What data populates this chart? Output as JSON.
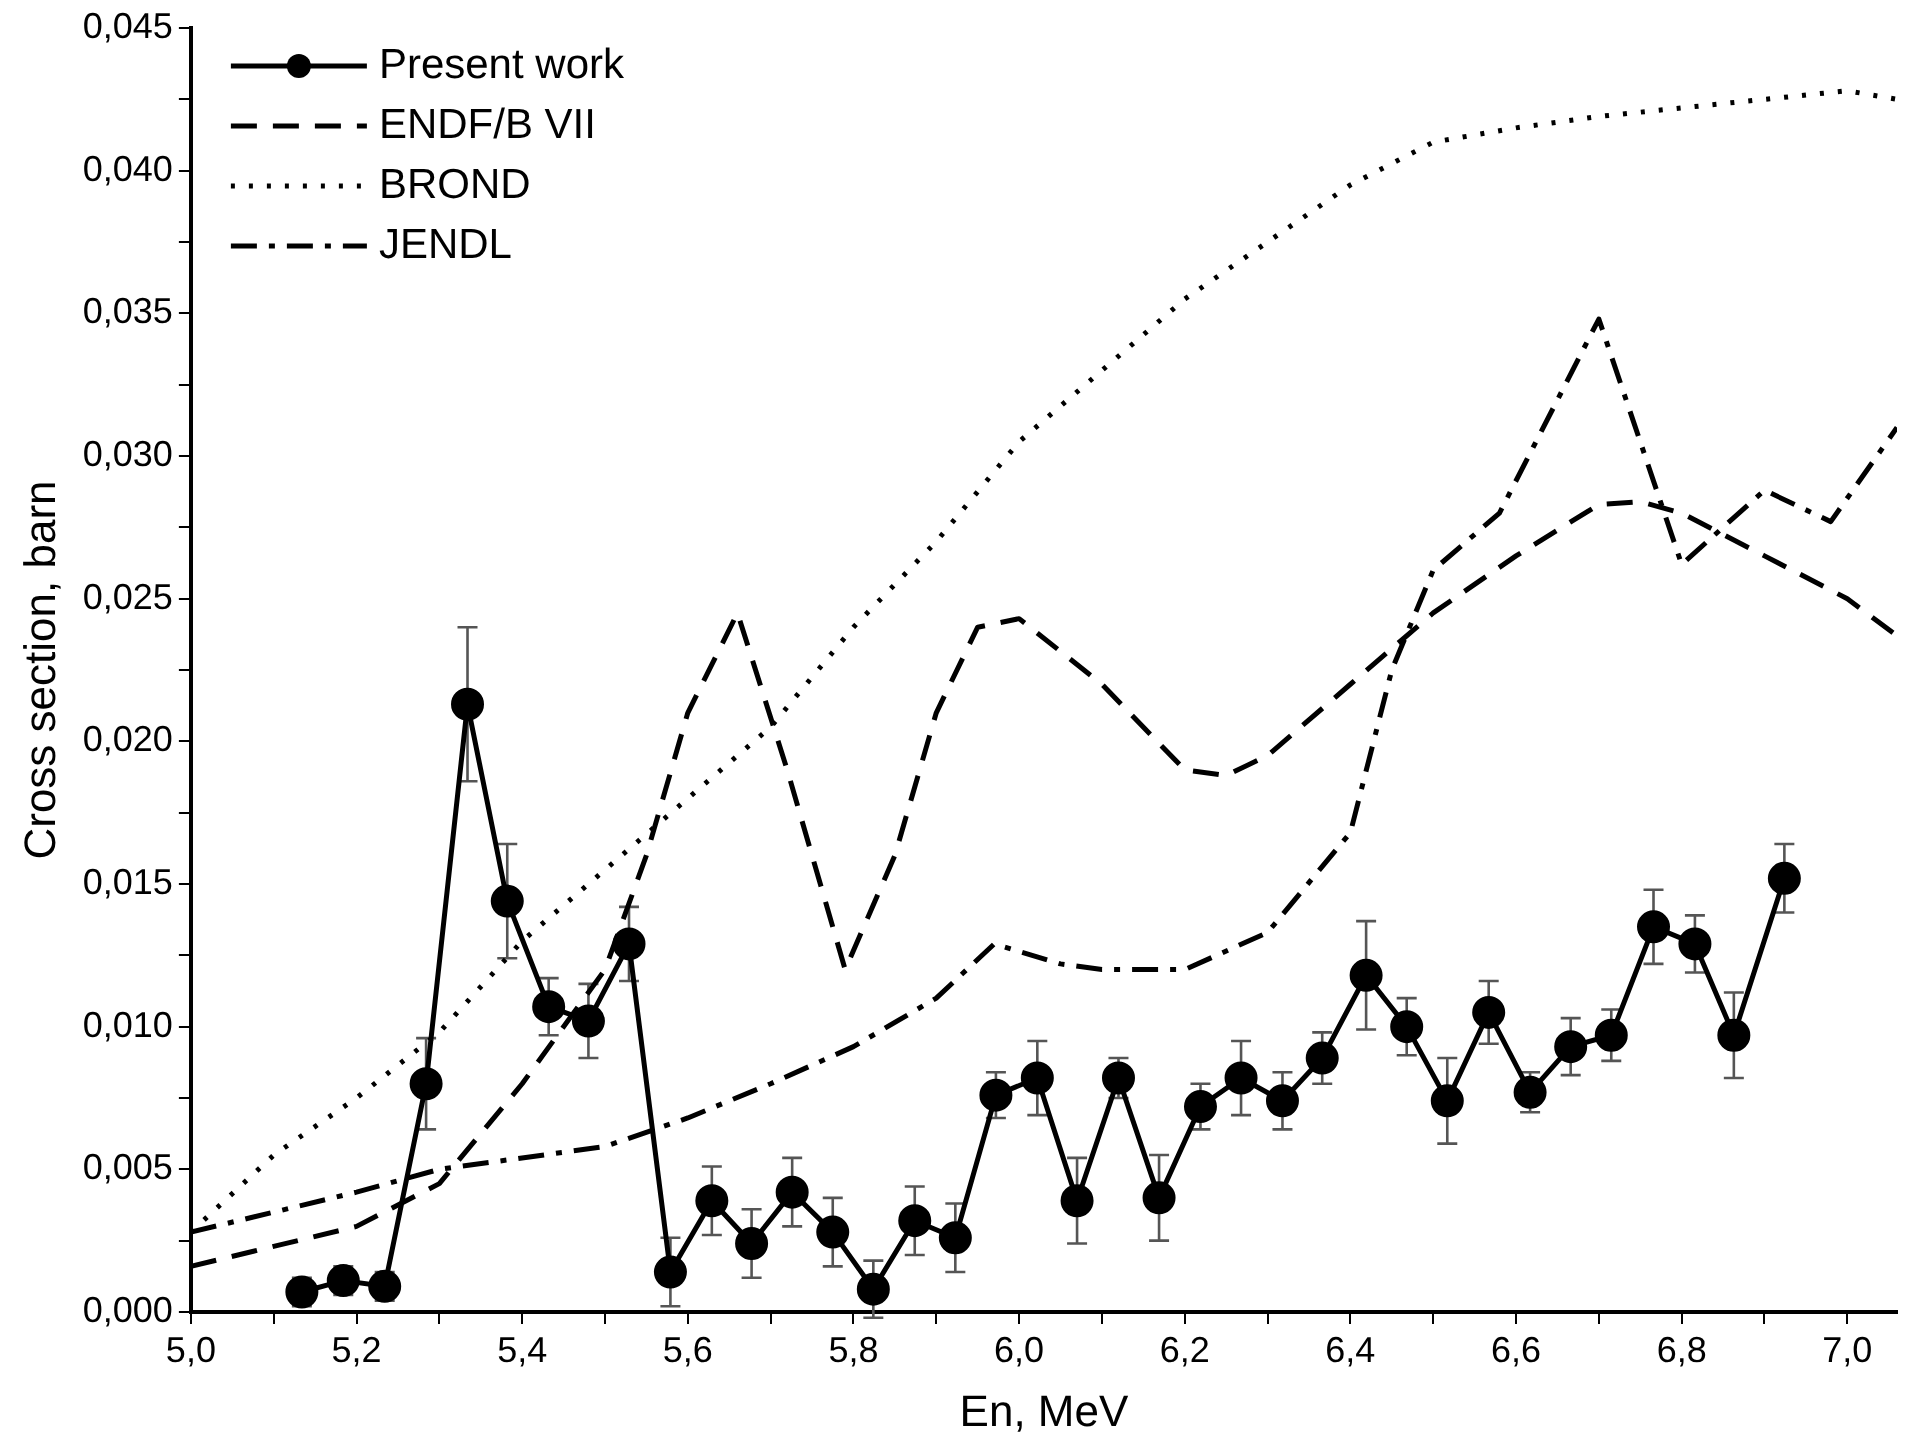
{
  "chart_data": {
    "type": "line",
    "xlabel": "En, MeV",
    "ylabel": "Cross section, barn",
    "xlim": [
      5.0,
      7.06
    ],
    "ylim": [
      0,
      0.045
    ],
    "xticks": [
      {
        "value": 5.0,
        "label": "5,0"
      },
      {
        "value": 5.1,
        "label": null
      },
      {
        "value": 5.2,
        "label": "5,2"
      },
      {
        "value": 5.3,
        "label": null
      },
      {
        "value": 5.4,
        "label": "5,4"
      },
      {
        "value": 5.5,
        "label": null
      },
      {
        "value": 5.6,
        "label": "5,6"
      },
      {
        "value": 5.7,
        "label": null
      },
      {
        "value": 5.8,
        "label": "5,8"
      },
      {
        "value": 5.9,
        "label": null
      },
      {
        "value": 6.0,
        "label": "6,0"
      },
      {
        "value": 6.1,
        "label": null
      },
      {
        "value": 6.2,
        "label": "6,2"
      },
      {
        "value": 6.3,
        "label": null
      },
      {
        "value": 6.4,
        "label": "6,4"
      },
      {
        "value": 6.5,
        "label": null
      },
      {
        "value": 6.6,
        "label": "6,6"
      },
      {
        "value": 6.7,
        "label": null
      },
      {
        "value": 6.8,
        "label": "6,8"
      },
      {
        "value": 6.9,
        "label": null
      },
      {
        "value": 7.0,
        "label": "7,0"
      }
    ],
    "yticks": [
      {
        "value": 0,
        "label": "0,000"
      },
      {
        "value": 0.0025,
        "label": null
      },
      {
        "value": 0.005,
        "label": "0,005"
      },
      {
        "value": 0.0075,
        "label": null
      },
      {
        "value": 0.01,
        "label": "0,010"
      },
      {
        "value": 0.0125,
        "label": null
      },
      {
        "value": 0.015,
        "label": "0,015"
      },
      {
        "value": 0.0175,
        "label": null
      },
      {
        "value": 0.02,
        "label": "0,020"
      },
      {
        "value": 0.0225,
        "label": null
      },
      {
        "value": 0.025,
        "label": "0,025"
      },
      {
        "value": 0.0275,
        "label": null
      },
      {
        "value": 0.03,
        "label": "0,030"
      },
      {
        "value": 0.0325,
        "label": null
      },
      {
        "value": 0.035,
        "label": "0,035"
      },
      {
        "value": 0.0375,
        "label": null
      },
      {
        "value": 0.04,
        "label": "0,040"
      },
      {
        "value": 0.0425,
        "label": null
      },
      {
        "value": 0.045,
        "label": "0,045"
      }
    ],
    "grid": false,
    "legend": "top left",
    "series": [
      {
        "name": "Present work",
        "color": "#000000",
        "marker": "circle",
        "line_style": "solid",
        "x": [
          5.134,
          5.184,
          5.234,
          5.284,
          5.334,
          5.382,
          5.432,
          5.48,
          5.529,
          5.579,
          5.629,
          5.677,
          5.726,
          5.775,
          5.824,
          5.874,
          5.923,
          5.972,
          6.022,
          6.07,
          6.12,
          6.169,
          6.219,
          6.268,
          6.318,
          6.366,
          6.419,
          6.468,
          6.517,
          6.567,
          6.617,
          6.666,
          6.715,
          6.766,
          6.816,
          6.863,
          6.924
        ],
        "values": [
          0.0007,
          0.0011,
          0.0009,
          0.008,
          0.0213,
          0.0144,
          0.0107,
          0.0102,
          0.0129,
          0.0014,
          0.0039,
          0.0024,
          0.0042,
          0.0028,
          0.0008,
          0.0032,
          0.0026,
          0.0076,
          0.0082,
          0.0039,
          0.0082,
          0.004,
          0.0072,
          0.0082,
          0.0074,
          0.0089,
          0.0118,
          0.01,
          0.0074,
          0.0105,
          0.0077,
          0.0093,
          0.0097,
          0.0135,
          0.0129,
          0.0097,
          0.0152
        ],
        "errors": [
          0.0005,
          0.0005,
          0.0005,
          0.0016,
          0.0027,
          0.002,
          0.001,
          0.0013,
          0.0013,
          0.0012,
          0.0012,
          0.0012,
          0.0012,
          0.0012,
          0.001,
          0.0012,
          0.0012,
          0.0008,
          0.0013,
          0.0015,
          0.0007,
          0.0015,
          0.0008,
          0.0013,
          0.001,
          0.0009,
          0.0019,
          0.001,
          0.0015,
          0.0011,
          0.0007,
          0.001,
          0.0009,
          0.0013,
          0.001,
          0.0015,
          0.0012
        ]
      },
      {
        "name": "ENDF/B VII",
        "color": "#000000",
        "marker": "none",
        "line_style": "dashed",
        "x": [
          5.0,
          5.2,
          5.3,
          5.4,
          5.5,
          5.55,
          5.6,
          5.66,
          5.72,
          5.79,
          5.85,
          5.9,
          5.95,
          6.0,
          6.1,
          6.2,
          6.25,
          6.3,
          6.4,
          6.5,
          6.6,
          6.7,
          6.75,
          6.8,
          6.9,
          7.0,
          7.06
        ],
        "values": [
          0.0016,
          0.003,
          0.0045,
          0.008,
          0.012,
          0.016,
          0.021,
          0.0245,
          0.019,
          0.012,
          0.016,
          0.021,
          0.024,
          0.0243,
          0.022,
          0.019,
          0.0188,
          0.0195,
          0.022,
          0.0245,
          0.0265,
          0.0283,
          0.0284,
          0.028,
          0.0265,
          0.025,
          0.0237
        ]
      },
      {
        "name": "BROND",
        "color": "#000000",
        "marker": "none",
        "line_style": "dotted",
        "x": [
          5.0,
          5.1,
          5.2,
          5.3,
          5.4,
          5.5,
          5.6,
          5.7,
          5.8,
          5.9,
          6.0,
          6.1,
          6.2,
          6.3,
          6.4,
          6.5,
          6.6,
          6.7,
          6.8,
          6.9,
          7.0,
          7.06
        ],
        "values": [
          0.0028,
          0.0055,
          0.0075,
          0.0098,
          0.013,
          0.0155,
          0.018,
          0.0205,
          0.024,
          0.027,
          0.0305,
          0.033,
          0.0355,
          0.0375,
          0.0395,
          0.041,
          0.0415,
          0.0419,
          0.0422,
          0.0425,
          0.0428,
          0.0425
        ]
      },
      {
        "name": "JENDL",
        "color": "#000000",
        "marker": "none",
        "line_style": "dashdot",
        "x": [
          5.0,
          5.2,
          5.3,
          5.5,
          5.6,
          5.7,
          5.8,
          5.9,
          5.97,
          6.05,
          6.1,
          6.2,
          6.3,
          6.4,
          6.45,
          6.5,
          6.58,
          6.7,
          6.8,
          6.9,
          6.98,
          7.06
        ],
        "values": [
          0.0028,
          0.0042,
          0.005,
          0.0058,
          0.0068,
          0.008,
          0.0093,
          0.011,
          0.0129,
          0.0122,
          0.012,
          0.012,
          0.0133,
          0.0168,
          0.0225,
          0.026,
          0.028,
          0.0348,
          0.0262,
          0.0288,
          0.0277,
          0.031
        ]
      }
    ]
  }
}
